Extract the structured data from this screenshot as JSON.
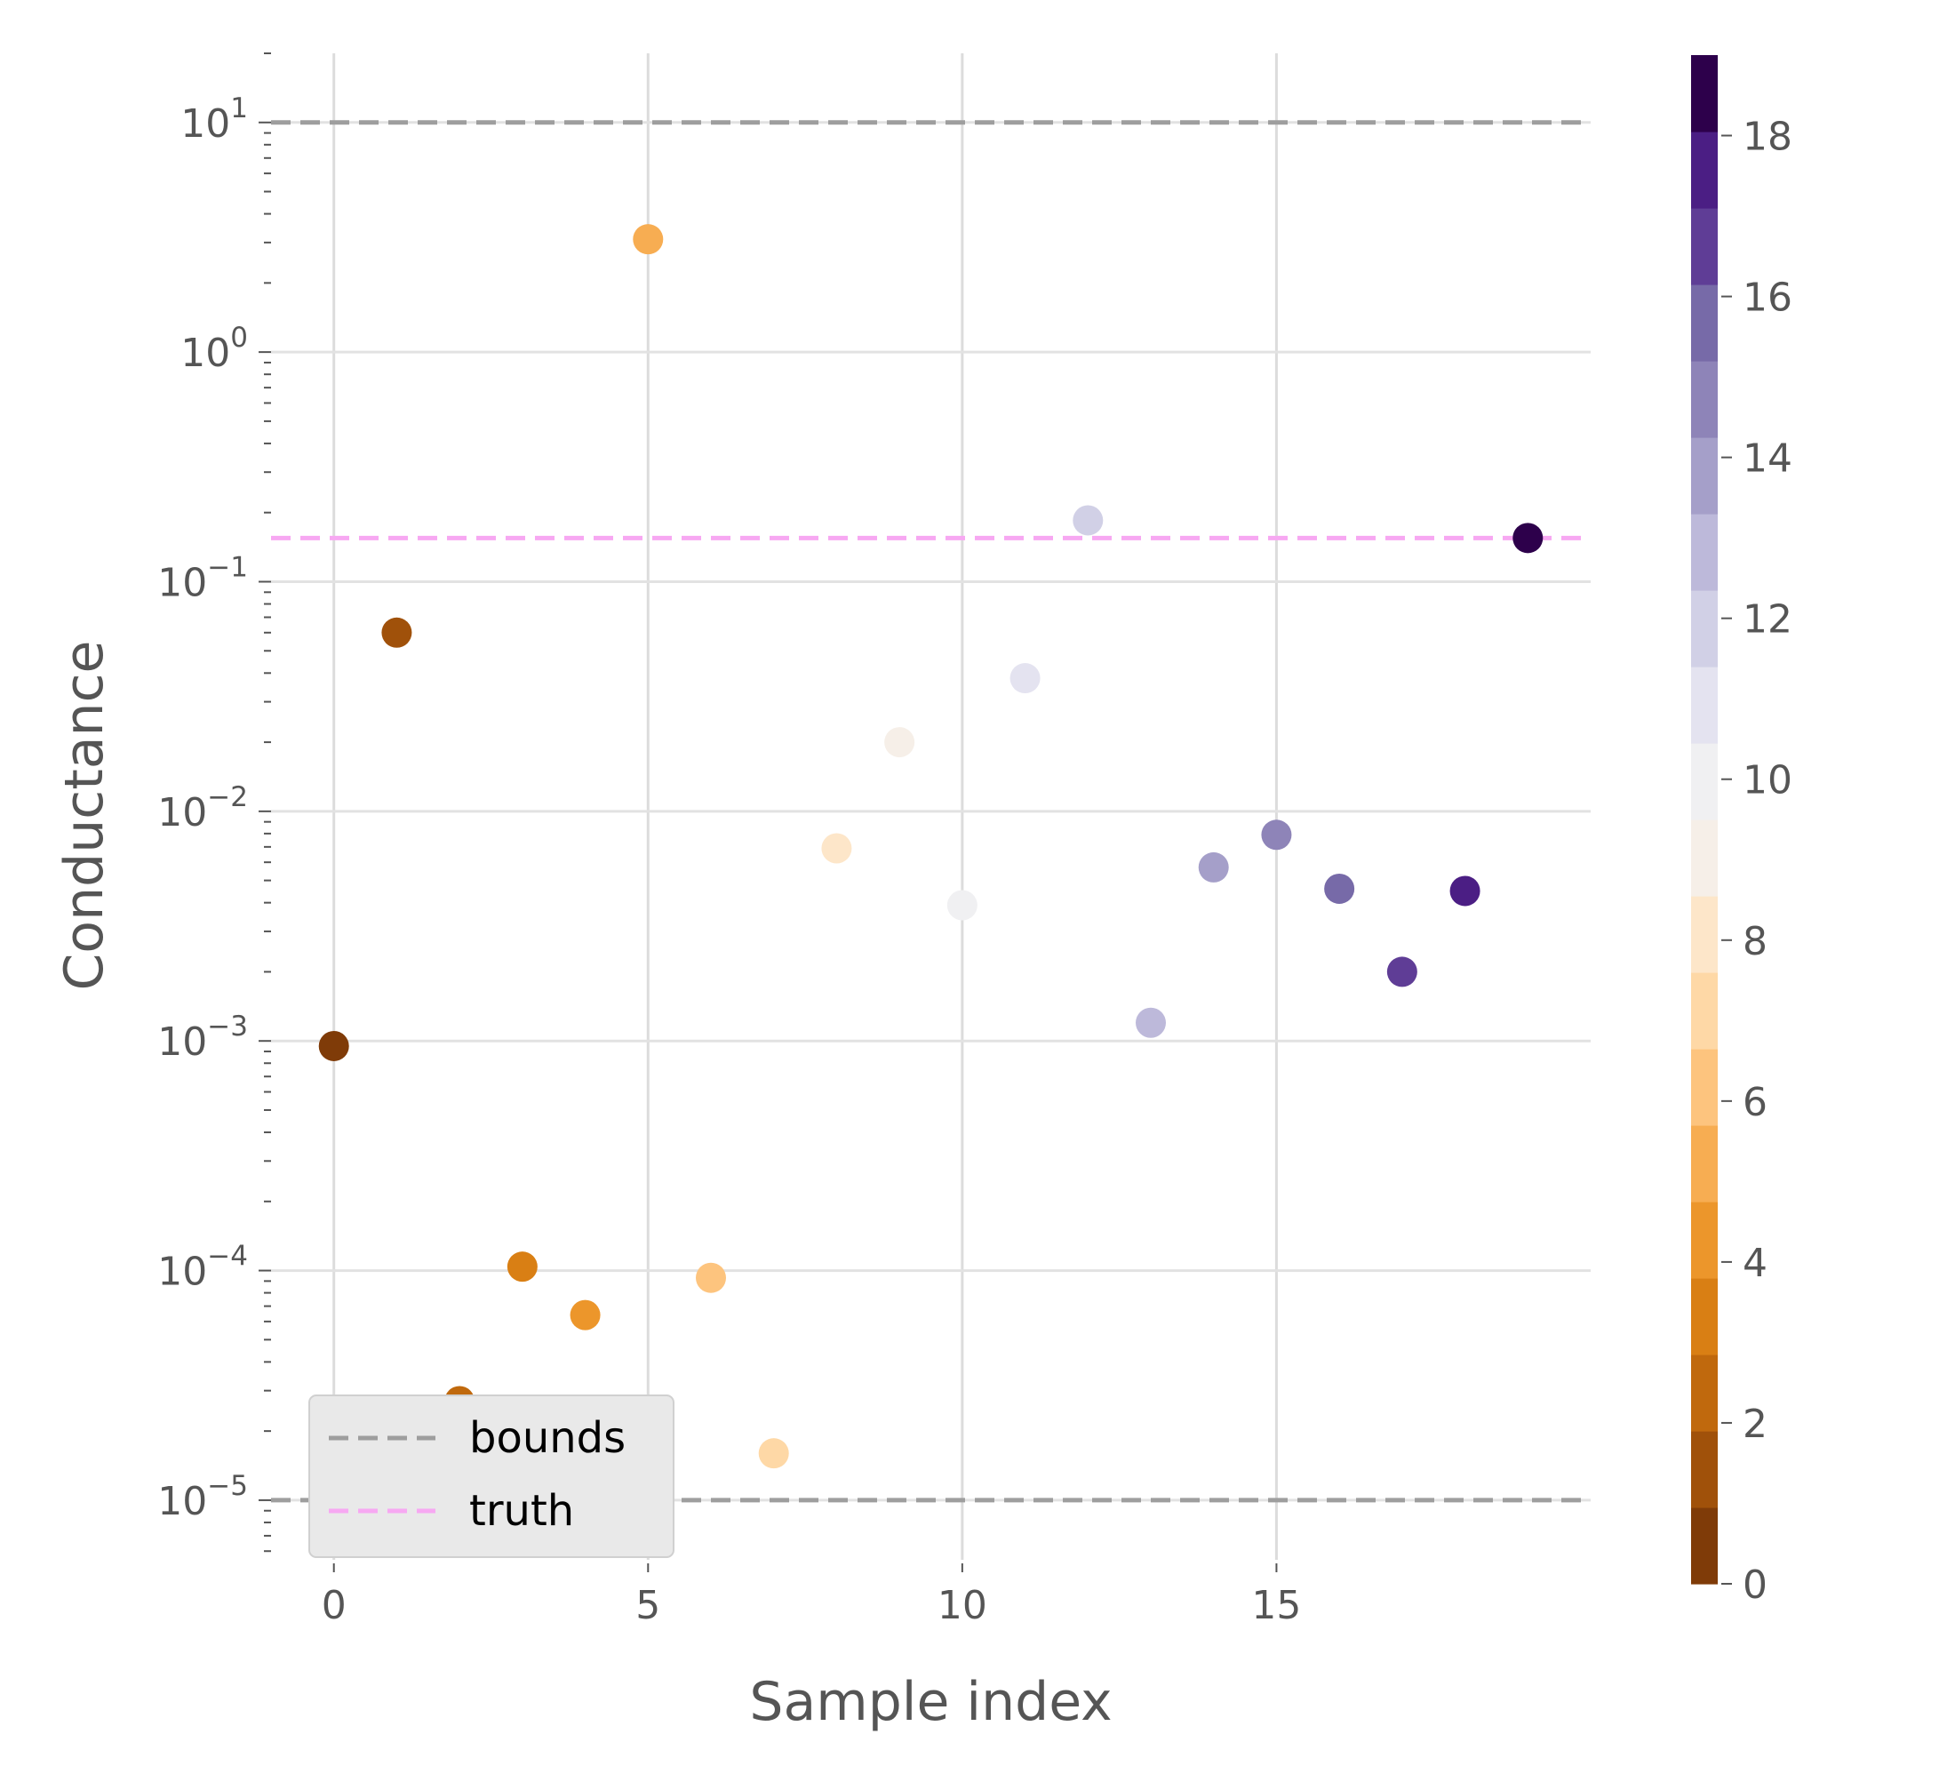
{
  "chart_data": {
    "type": "scatter",
    "xlabel": "Sample index",
    "ylabel": "Conductance",
    "yscale": "log",
    "xlim": [
      -1,
      20
    ],
    "ylim": [
      5.5e-06,
      20
    ],
    "grid": true,
    "x_ticks": [
      0,
      5,
      10,
      15
    ],
    "y_ticks": [
      {
        "value": 10,
        "base": "10",
        "exp": "1"
      },
      {
        "value": 1,
        "base": "10",
        "exp": "0"
      },
      {
        "value": 0.1,
        "base": "10",
        "exp": "−1"
      },
      {
        "value": 0.01,
        "base": "10",
        "exp": "−2"
      },
      {
        "value": 0.001,
        "base": "10",
        "exp": "−3"
      },
      {
        "value": 0.0001,
        "base": "10",
        "exp": "−4"
      },
      {
        "value": 1e-05,
        "base": "10",
        "exp": "−5"
      }
    ],
    "points": [
      {
        "x": 0,
        "y": 0.00095,
        "c": 0
      },
      {
        "x": 1,
        "y": 0.06,
        "c": 1
      },
      {
        "x": 2,
        "y": 2.7e-05,
        "c": 2
      },
      {
        "x": 3,
        "y": 0.000104,
        "c": 3
      },
      {
        "x": 4,
        "y": 6.4e-05,
        "c": 4
      },
      {
        "x": 5,
        "y": 3.1,
        "c": 5
      },
      {
        "x": 6,
        "y": 9.3e-05,
        "c": 6
      },
      {
        "x": 7,
        "y": 1.6e-05,
        "c": 7
      },
      {
        "x": 8,
        "y": 0.0069,
        "c": 8
      },
      {
        "x": 9,
        "y": 0.02,
        "c": 9
      },
      {
        "x": 10,
        "y": 0.0039,
        "c": 10
      },
      {
        "x": 11,
        "y": 0.038,
        "c": 11
      },
      {
        "x": 12,
        "y": 0.185,
        "c": 12
      },
      {
        "x": 13,
        "y": 0.0012,
        "c": 13
      },
      {
        "x": 14,
        "y": 0.0057,
        "c": 14
      },
      {
        "x": 15,
        "y": 0.0079,
        "c": 15
      },
      {
        "x": 16,
        "y": 0.0046,
        "c": 16
      },
      {
        "x": 17,
        "y": 0.002,
        "c": 17
      },
      {
        "x": 18,
        "y": 0.0045,
        "c": 18
      },
      {
        "x": 19,
        "y": 0.155,
        "c": 19
      }
    ],
    "reference_lines": [
      {
        "name": "bounds",
        "y": 10,
        "color": "#9e9e9e"
      },
      {
        "name": "bounds",
        "y": 1e-05,
        "color": "#9e9e9e"
      },
      {
        "name": "truth",
        "y": 0.155,
        "color": "#f7a8f2"
      }
    ],
    "legend": {
      "position": "lower-left",
      "entries": [
        {
          "label": "bounds",
          "color": "#9e9e9e"
        },
        {
          "label": "truth",
          "color": "#f7a8f2"
        }
      ]
    },
    "colorbar": {
      "range": [
        0,
        19
      ],
      "ticks": [
        0,
        2,
        4,
        6,
        8,
        10,
        12,
        14,
        16,
        18
      ],
      "colors": [
        "#7f3b08",
        "#a0510a",
        "#c0690d",
        "#d97f14",
        "#ec962b",
        "#f7ad52",
        "#fdc47e",
        "#fed8a6",
        "#fde6c9",
        "#f6efe8",
        "#f0f0f2",
        "#e4e3f0",
        "#d1d0e6",
        "#bdb9da",
        "#a59fc9",
        "#8e84b8",
        "#776aa8",
        "#5f3d96",
        "#4b1e84",
        "#2d004b"
      ]
    }
  }
}
